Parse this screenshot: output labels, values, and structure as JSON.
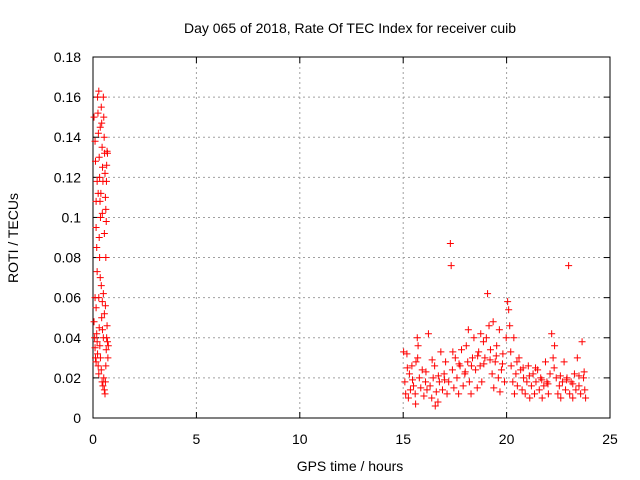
{
  "chart_data": {
    "type": "scatter",
    "title": "Day 065 of 2018, Rate Of TEC Index for receiver cuib",
    "xlabel": "GPS time / hours",
    "ylabel": "ROTI / TECUs",
    "xlim": [
      0,
      25
    ],
    "ylim": [
      0,
      0.18
    ],
    "xticks": [
      0,
      5,
      10,
      15,
      20,
      25
    ],
    "xtick_labels": [
      "0",
      "5",
      "10",
      "15",
      "20",
      "25"
    ],
    "yticks": [
      0,
      0.02,
      0.04,
      0.06,
      0.08,
      0.1,
      0.12,
      0.14,
      0.16,
      0.18
    ],
    "ytick_labels": [
      "0",
      "0.02",
      "0.04",
      "0.06",
      "0.08",
      "0.1",
      "0.12",
      "0.14",
      "0.16",
      "0.18"
    ],
    "grid": true,
    "marker": "plus",
    "color": "#ff0000",
    "series": [
      {
        "name": "ROTI",
        "points": [
          [
            0.05,
            0.15
          ],
          [
            0.1,
            0.138
          ],
          [
            0.12,
            0.128
          ],
          [
            0.15,
            0.095
          ],
          [
            0.18,
            0.085
          ],
          [
            0.2,
            0.073
          ],
          [
            0.22,
            0.16
          ],
          [
            0.24,
            0.152
          ],
          [
            0.26,
            0.142
          ],
          [
            0.28,
            0.163
          ],
          [
            0.3,
            0.13
          ],
          [
            0.32,
            0.12
          ],
          [
            0.34,
            0.108
          ],
          [
            0.36,
            0.1
          ],
          [
            0.38,
            0.112
          ],
          [
            0.4,
            0.155
          ],
          [
            0.42,
            0.147
          ],
          [
            0.44,
            0.135
          ],
          [
            0.46,
            0.125
          ],
          [
            0.48,
            0.118
          ],
          [
            0.5,
            0.16
          ],
          [
            0.52,
            0.15
          ],
          [
            0.54,
            0.14
          ],
          [
            0.56,
            0.132
          ],
          [
            0.58,
            0.122
          ],
          [
            0.6,
            0.11
          ],
          [
            0.62,
            0.104
          ],
          [
            0.64,
            0.098
          ],
          [
            0.66,
            0.126
          ],
          [
            0.68,
            0.133
          ],
          [
            0.3,
            0.09
          ],
          [
            0.32,
            0.08
          ],
          [
            0.35,
            0.07
          ],
          [
            0.4,
            0.066
          ],
          [
            0.45,
            0.058
          ],
          [
            0.5,
            0.062
          ],
          [
            0.55,
            0.052
          ],
          [
            0.6,
            0.056
          ],
          [
            0.62,
            0.08
          ],
          [
            0.28,
            0.06
          ],
          [
            0.05,
            0.048
          ],
          [
            0.08,
            0.04
          ],
          [
            0.1,
            0.035
          ],
          [
            0.12,
            0.03
          ],
          [
            0.15,
            0.028
          ],
          [
            0.18,
            0.042
          ],
          [
            0.2,
            0.038
          ],
          [
            0.22,
            0.032
          ],
          [
            0.25,
            0.026
          ],
          [
            0.28,
            0.022
          ],
          [
            0.3,
            0.045
          ],
          [
            0.33,
            0.036
          ],
          [
            0.36,
            0.03
          ],
          [
            0.4,
            0.024
          ],
          [
            0.44,
            0.018
          ],
          [
            0.48,
            0.016
          ],
          [
            0.52,
            0.02
          ],
          [
            0.55,
            0.014
          ],
          [
            0.58,
            0.012
          ],
          [
            0.6,
            0.018
          ],
          [
            0.62,
            0.026
          ],
          [
            0.64,
            0.034
          ],
          [
            0.66,
            0.04
          ],
          [
            0.68,
            0.046
          ],
          [
            0.7,
            0.038
          ],
          [
            0.72,
            0.03
          ],
          [
            0.74,
            0.036
          ],
          [
            0.42,
            0.05
          ],
          [
            0.46,
            0.044
          ],
          [
            0.5,
            0.04
          ],
          [
            0.15,
            0.108
          ],
          [
            0.2,
            0.118
          ],
          [
            0.25,
            0.112
          ],
          [
            0.35,
            0.145
          ],
          [
            0.45,
            0.102
          ],
          [
            0.55,
            0.092
          ],
          [
            0.65,
            0.118
          ],
          [
            0.7,
            0.132
          ],
          [
            0.1,
            0.06
          ],
          [
            0.15,
            0.055
          ],
          [
            15.02,
            0.033
          ],
          [
            15.08,
            0.018
          ],
          [
            15.12,
            0.012
          ],
          [
            15.18,
            0.032
          ],
          [
            15.25,
            0.01
          ],
          [
            15.3,
            0.022
          ],
          [
            15.35,
            0.014
          ],
          [
            15.42,
            0.026
          ],
          [
            15.5,
            0.016
          ],
          [
            15.58,
            0.012
          ],
          [
            15.62,
            0.028
          ],
          [
            15.68,
            0.04
          ],
          [
            15.72,
            0.036
          ],
          [
            15.78,
            0.02
          ],
          [
            15.85,
            0.015
          ],
          [
            15.92,
            0.024
          ],
          [
            16.0,
            0.011
          ],
          [
            16.08,
            0.018
          ],
          [
            16.15,
            0.014
          ],
          [
            16.22,
            0.042
          ],
          [
            16.3,
            0.016
          ],
          [
            16.38,
            0.01
          ],
          [
            16.45,
            0.02
          ],
          [
            16.52,
            0.026
          ],
          [
            16.6,
            0.013
          ],
          [
            16.68,
            0.008
          ],
          [
            16.75,
            0.018
          ],
          [
            16.82,
            0.033
          ],
          [
            16.9,
            0.014
          ],
          [
            16.98,
            0.022
          ],
          [
            17.05,
            0.028
          ],
          [
            17.12,
            0.012
          ],
          [
            17.2,
            0.018
          ],
          [
            17.28,
            0.087
          ],
          [
            17.32,
            0.076
          ],
          [
            17.38,
            0.024
          ],
          [
            17.45,
            0.015
          ],
          [
            17.52,
            0.03
          ],
          [
            17.6,
            0.02
          ],
          [
            17.68,
            0.012
          ],
          [
            17.75,
            0.026
          ],
          [
            17.82,
            0.034
          ],
          [
            17.9,
            0.016
          ],
          [
            17.98,
            0.022
          ],
          [
            18.05,
            0.036
          ],
          [
            18.12,
            0.028
          ],
          [
            18.2,
            0.018
          ],
          [
            18.28,
            0.012
          ],
          [
            18.35,
            0.03
          ],
          [
            18.42,
            0.04
          ],
          [
            18.5,
            0.024
          ],
          [
            18.58,
            0.015
          ],
          [
            18.65,
            0.033
          ],
          [
            18.72,
            0.026
          ],
          [
            18.8,
            0.018
          ],
          [
            18.88,
            0.038
          ],
          [
            18.95,
            0.03
          ],
          [
            19.02,
            0.04
          ],
          [
            19.08,
            0.062
          ],
          [
            19.15,
            0.046
          ],
          [
            19.22,
            0.034
          ],
          [
            19.3,
            0.022
          ],
          [
            19.38,
            0.015
          ],
          [
            19.45,
            0.028
          ],
          [
            19.52,
            0.036
          ],
          [
            19.6,
            0.02
          ],
          [
            19.68,
            0.013
          ],
          [
            19.75,
            0.024
          ],
          [
            19.82,
            0.032
          ],
          [
            19.9,
            0.018
          ],
          [
            19.98,
            0.04
          ],
          [
            20.05,
            0.058
          ],
          [
            20.1,
            0.054
          ],
          [
            20.15,
            0.046
          ],
          [
            20.22,
            0.026
          ],
          [
            20.3,
            0.018
          ],
          [
            20.38,
            0.012
          ],
          [
            20.45,
            0.022
          ],
          [
            20.52,
            0.016
          ],
          [
            20.6,
            0.03
          ],
          [
            20.68,
            0.024
          ],
          [
            20.75,
            0.014
          ],
          [
            20.82,
            0.02
          ],
          [
            20.9,
            0.012
          ],
          [
            20.98,
            0.018
          ],
          [
            21.05,
            0.026
          ],
          [
            21.12,
            0.01
          ],
          [
            21.2,
            0.016
          ],
          [
            21.28,
            0.022
          ],
          [
            21.35,
            0.012
          ],
          [
            21.42,
            0.018
          ],
          [
            21.5,
            0.024
          ],
          [
            21.58,
            0.014
          ],
          [
            21.65,
            0.02
          ],
          [
            21.72,
            0.01
          ],
          [
            21.8,
            0.016
          ],
          [
            21.88,
            0.028
          ],
          [
            21.95,
            0.018
          ],
          [
            22.02,
            0.012
          ],
          [
            22.1,
            0.022
          ],
          [
            22.18,
            0.042
          ],
          [
            22.25,
            0.03
          ],
          [
            22.32,
            0.036
          ],
          [
            22.4,
            0.02
          ],
          [
            22.48,
            0.012
          ],
          [
            22.55,
            0.016
          ],
          [
            22.62,
            0.01
          ],
          [
            22.7,
            0.018
          ],
          [
            22.78,
            0.028
          ],
          [
            22.85,
            0.014
          ],
          [
            22.92,
            0.02
          ],
          [
            23.0,
            0.076
          ],
          [
            23.05,
            0.012
          ],
          [
            23.12,
            0.018
          ],
          [
            23.2,
            0.01
          ],
          [
            23.28,
            0.022
          ],
          [
            23.35,
            0.014
          ],
          [
            23.42,
            0.03
          ],
          [
            23.5,
            0.016
          ],
          [
            23.58,
            0.012
          ],
          [
            23.65,
            0.038
          ],
          [
            23.72,
            0.02
          ],
          [
            23.78,
            0.014
          ],
          [
            23.82,
            0.01
          ],
          [
            15.2,
            0.025
          ],
          [
            15.45,
            0.019
          ],
          [
            15.7,
            0.03
          ],
          [
            16.1,
            0.023
          ],
          [
            16.4,
            0.029
          ],
          [
            16.7,
            0.021
          ],
          [
            17.0,
            0.019
          ],
          [
            17.4,
            0.033
          ],
          [
            17.7,
            0.027
          ],
          [
            18.0,
            0.023
          ],
          [
            18.3,
            0.026
          ],
          [
            18.6,
            0.031
          ],
          [
            18.9,
            0.027
          ],
          [
            19.2,
            0.029
          ],
          [
            19.5,
            0.031
          ],
          [
            19.8,
            0.027
          ],
          [
            20.2,
            0.033
          ],
          [
            20.5,
            0.028
          ],
          [
            20.8,
            0.025
          ],
          [
            21.1,
            0.021
          ],
          [
            21.4,
            0.025
          ],
          [
            21.7,
            0.019
          ],
          [
            22.0,
            0.017
          ],
          [
            22.3,
            0.025
          ],
          [
            22.6,
            0.021
          ],
          [
            22.9,
            0.019
          ],
          [
            23.2,
            0.017
          ],
          [
            23.5,
            0.021
          ],
          [
            23.75,
            0.023
          ],
          [
            18.15,
            0.044
          ],
          [
            18.75,
            0.042
          ],
          [
            19.35,
            0.048
          ],
          [
            19.65,
            0.044
          ],
          [
            20.35,
            0.04
          ],
          [
            15.6,
            0.007
          ],
          [
            16.55,
            0.006
          ]
        ]
      }
    ]
  }
}
